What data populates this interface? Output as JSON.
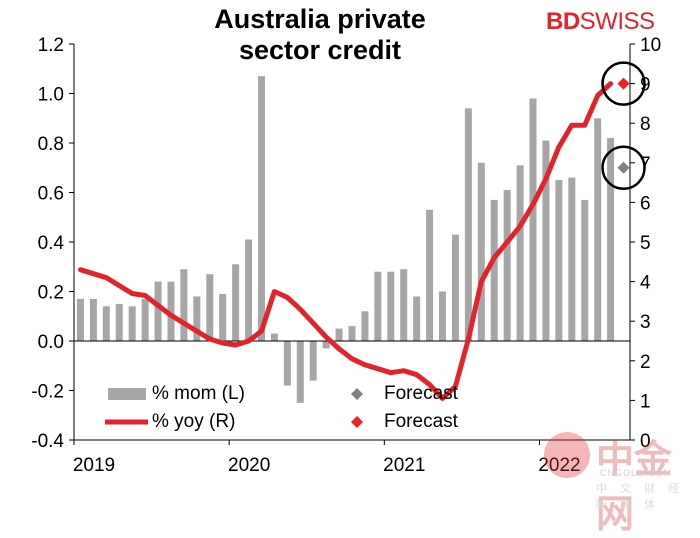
{
  "title_line1": "Australia private",
  "title_line2": "sector credit",
  "logo": {
    "bd": "BD",
    "swiss": "SWISS"
  },
  "watermark": {
    "main": "中金网",
    "sub": "CNGOLD.COM",
    "sub2": "中 文 财 经 新 媒 体"
  },
  "chart_data": {
    "type": "bar+line",
    "title": "Australia private sector credit",
    "x_tick_labels": [
      "2019",
      "2020",
      "2021",
      "2022"
    ],
    "left_axis": {
      "label": "% mom (L)",
      "ylim": [
        -0.4,
        1.2
      ],
      "ticks": [
        "-0.4",
        "-0.2",
        "0.0",
        "0.2",
        "0.4",
        "0.6",
        "0.8",
        "1.0",
        "1.2"
      ]
    },
    "right_axis": {
      "label": "% yoy (R)",
      "ylim": [
        0,
        10
      ],
      "ticks": [
        "0",
        "1",
        "2",
        "3",
        "4",
        "5",
        "6",
        "7",
        "8",
        "9",
        "10"
      ]
    },
    "mom_bars": [
      0.17,
      0.17,
      0.14,
      0.15,
      0.14,
      0.17,
      0.24,
      0.24,
      0.29,
      0.18,
      0.27,
      0.19,
      0.31,
      0.41,
      1.07,
      0.03,
      -0.18,
      -0.25,
      -0.16,
      -0.03,
      0.05,
      0.06,
      0.12,
      0.28,
      0.28,
      0.29,
      0.18,
      0.53,
      0.2,
      0.43,
      0.94,
      0.72,
      0.57,
      0.61,
      0.71,
      0.98,
      0.81,
      0.65,
      0.66,
      0.57,
      0.9,
      0.82
    ],
    "yoy_line": [
      4.3,
      4.2,
      4.1,
      3.9,
      3.7,
      3.65,
      3.4,
      3.15,
      2.95,
      2.75,
      2.55,
      2.45,
      2.4,
      2.5,
      2.75,
      3.75,
      3.6,
      3.3,
      2.95,
      2.6,
      2.3,
      2.05,
      1.9,
      1.8,
      1.7,
      1.75,
      1.65,
      1.4,
      1.05,
      1.35,
      2.55,
      4.0,
      4.6,
      5.0,
      5.4,
      5.95,
      6.6,
      7.4,
      7.95,
      7.95,
      8.7,
      9.0
    ],
    "forecast_mom": {
      "label": "Forecast",
      "value": 0.7,
      "color": "#808080"
    },
    "forecast_yoy": {
      "label": "Forecast",
      "value": 9.0,
      "color": "#ee2222"
    },
    "bar_color": "#a6a6a6",
    "line_color": "#e3232b",
    "legend": {
      "bar": "% mom (L)",
      "line": "% yoy (R)",
      "forecast": "Forecast"
    }
  }
}
